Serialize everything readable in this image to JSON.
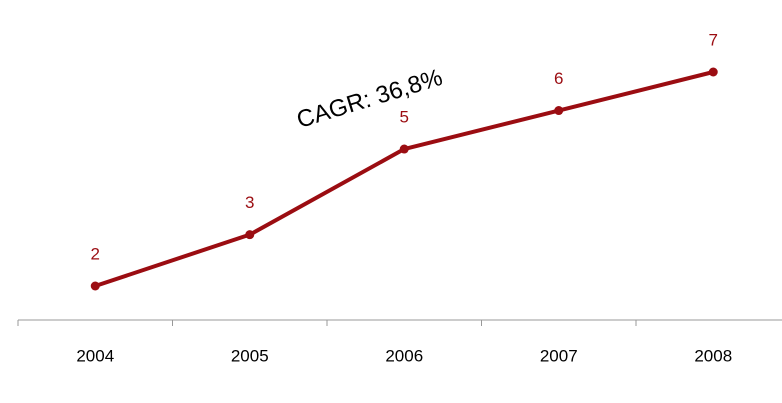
{
  "chart_data": {
    "type": "line",
    "annotation": "CAGR: 36,8%",
    "categories": [
      "2004",
      "2005",
      "2006",
      "2007",
      "2008"
    ],
    "values": [
      2.0,
      3.2,
      5.2,
      6.1,
      7.0
    ],
    "value_labels": [
      "2",
      "3",
      "5",
      "6",
      "7"
    ],
    "color": "#9b0d12",
    "ylim": [
      0,
      8
    ]
  }
}
